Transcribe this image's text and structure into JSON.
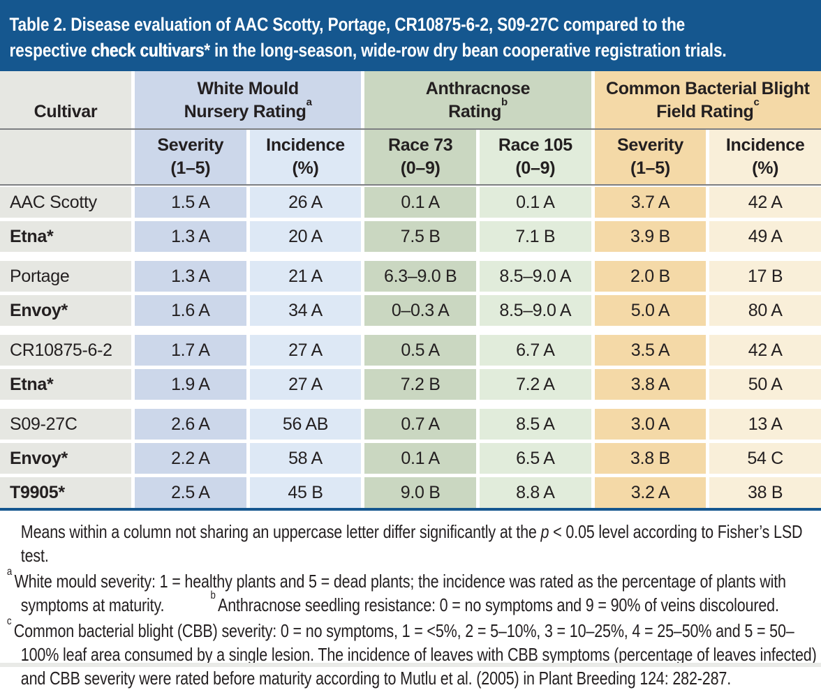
{
  "colors": {
    "title_bar_bg": "#15578f",
    "title_text": "#ffffff",
    "cultivar_col_bg": "#e6e7e2",
    "white_mould_dark_bg": "#ccd7ea",
    "white_mould_light_bg": "#dde8f5",
    "anthracnose_dark_bg": "#cad7c1",
    "anthracnose_light_bg": "#e1ecdb",
    "cbb_dark_bg": "#f4d9a7",
    "cbb_light_bg": "#f9efd9",
    "header_rule": "#7d7f82",
    "bottom_rule": "#15578f",
    "text": "#231f20",
    "bottom_edge_bg": "#e9eae7"
  },
  "title": {
    "line1": "Table 2. Disease evaluation of AAC Scotty, Portage, CR10875-6-2, S09-27C compared to the",
    "line2_pre": "respective ",
    "line2_bold": "check cultivars",
    "line2_post": "* in the long-season, wide-row dry bean cooperative registration trials."
  },
  "table": {
    "cultivar_header": "Cultivar",
    "groups": [
      {
        "line1": "White Mould",
        "line2": "Nursery Rating",
        "footnote_ref": "a"
      },
      {
        "line1": "Anthracnose",
        "line2": "Rating",
        "footnote_ref": "b"
      },
      {
        "line1": "Common Bacterial Blight",
        "line2": "Field Rating",
        "footnote_ref": "c"
      }
    ],
    "subheaders": [
      {
        "line1": "Severity",
        "line2": "(1–5)"
      },
      {
        "line1": "Incidence",
        "line2": "(%)"
      },
      {
        "line1": "Race 73",
        "line2": "(0–9)"
      },
      {
        "line1": "Race 105",
        "line2": "(0–9)"
      },
      {
        "line1": "Severity",
        "line2": "(1–5)"
      },
      {
        "line1": "Incidence",
        "line2": "(%)"
      }
    ],
    "rows": [
      {
        "cultivar": "AAC Scotty",
        "check": false,
        "group_start": true,
        "values": [
          "1.5 A",
          "26 A",
          "0.1 A",
          "0.1 A",
          "3.7 A",
          "42 A"
        ]
      },
      {
        "cultivar": "Etna*",
        "check": true,
        "group_start": false,
        "values": [
          "1.3 A",
          "20 A",
          "7.5 B",
          "7.1 B",
          "3.9 B",
          "49 A"
        ]
      },
      {
        "cultivar": "Portage",
        "check": false,
        "group_start": true,
        "values": [
          "1.3 A",
          "21 A",
          "6.3–9.0 B",
          "8.5–9.0 A",
          "2.0 B",
          "17 B"
        ]
      },
      {
        "cultivar": "Envoy*",
        "check": true,
        "group_start": false,
        "values": [
          "1.6 A",
          "34 A",
          "0–0.3 A",
          "8.5–9.0 A",
          "5.0 A",
          "80 A"
        ]
      },
      {
        "cultivar": "CR10875-6-2",
        "check": false,
        "group_start": true,
        "values": [
          "1.7 A",
          "27 A",
          "0.5 A",
          "6.7 A",
          "3.5 A",
          "42 A"
        ]
      },
      {
        "cultivar": "Etna*",
        "check": true,
        "group_start": false,
        "values": [
          "1.9 A",
          "27 A",
          "7.2 B",
          "7.2 A",
          "3.8 A",
          "50 A"
        ]
      },
      {
        "cultivar": "S09-27C",
        "check": false,
        "group_start": true,
        "values": [
          "2.6 A",
          "56 AB",
          "0.7 A",
          "8.5 A",
          "3.0 A",
          "13 A"
        ]
      },
      {
        "cultivar": "Envoy*",
        "check": true,
        "group_start": false,
        "values": [
          "2.2 A",
          "58 A",
          "0.1 A",
          "6.5 A",
          "3.8 B",
          "54 C"
        ]
      },
      {
        "cultivar": "T9905*",
        "check": true,
        "group_start": false,
        "values": [
          "2.5 A",
          "45 B",
          "9.0 B",
          "8.8 A",
          "3.2 A",
          "38 B"
        ]
      }
    ]
  },
  "footnotes": {
    "lsd": {
      "pre": "Means within a column not sharing an uppercase letter differ significantly at the ",
      "italic": "p",
      "post": " < 0.05 level according to Fisher’s LSD test."
    },
    "a": {
      "marker": "a",
      "text": "White mould severity: 1 = healthy plants and 5 = dead plants; the incidence was rated as the percentage of plants with symptoms at maturity."
    },
    "b": {
      "marker": "b",
      "text": "Anthracnose seedling resistance: 0 = no symptoms and 9 = 90% of veins discoloured."
    },
    "c": {
      "marker": "c",
      "text": "Common bacterial blight (CBB) severity: 0 = no symptoms, 1 = <5%, 2 = 5–10%, 3 = 10–25%, 4 = 25–50% and 5 = 50–100% leaf area consumed by a single lesion. The incidence of leaves with CBB symptoms (percentage of leaves infected) and CBB severity were rated before maturity according to Mutlu et al. (2005) in Plant Breeding 124: 282-287."
    }
  }
}
